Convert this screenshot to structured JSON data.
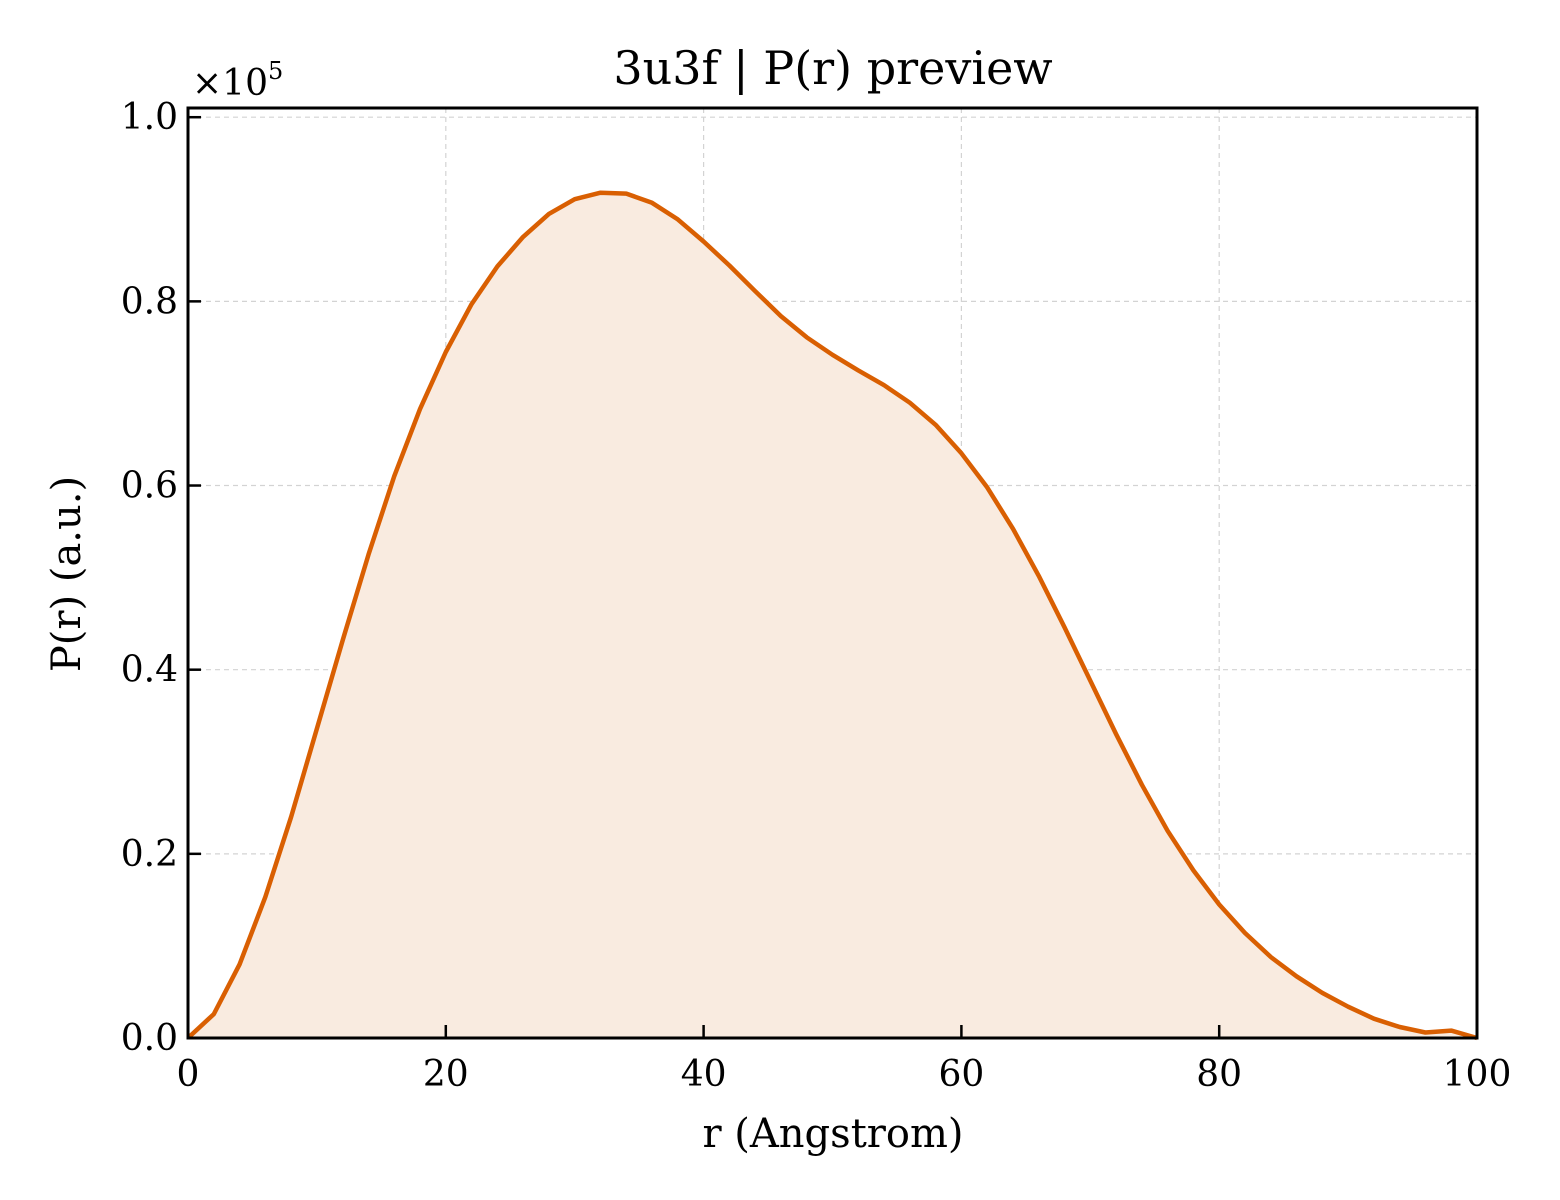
{
  "chart_data": {
    "type": "area",
    "title": "3u3f | P(r) preview",
    "xlabel": "r (Angstrom)",
    "ylabel": "P(r) (a.u.)",
    "y_multiplier_base": "×10",
    "y_multiplier_exp": "5",
    "xlim": [
      0,
      100
    ],
    "ylim": [
      0,
      1.01
    ],
    "x_ticks": [
      0,
      20,
      40,
      60,
      80,
      100
    ],
    "x_tick_labels": [
      "0",
      "20",
      "40",
      "60",
      "80",
      "100"
    ],
    "y_ticks": [
      0.0,
      0.2,
      0.4,
      0.6,
      0.8,
      1.0
    ],
    "y_tick_labels": [
      "0.0",
      "0.2",
      "0.4",
      "0.6",
      "0.8",
      "1.0"
    ],
    "grid": true,
    "line_color": "#d95f02",
    "fill_color": "#f9ebe0",
    "series": [
      {
        "x": [
          0,
          2,
          4,
          6,
          8,
          10,
          12,
          14,
          16,
          18,
          20,
          22,
          24,
          26,
          28,
          30,
          32,
          34,
          36,
          38,
          40,
          42,
          44,
          46,
          48,
          50,
          52,
          54,
          56,
          58,
          60,
          62,
          64,
          66,
          68,
          70,
          72,
          74,
          76,
          78,
          80,
          82,
          84,
          86,
          88,
          90,
          92,
          94,
          96,
          98,
          100
        ],
        "y": [
          0.0,
          0.026,
          0.08,
          0.153,
          0.24,
          0.336,
          0.432,
          0.525,
          0.61,
          0.683,
          0.745,
          0.797,
          0.838,
          0.87,
          0.895,
          0.911,
          0.918,
          0.917,
          0.907,
          0.889,
          0.865,
          0.839,
          0.811,
          0.784,
          0.761,
          0.742,
          0.725,
          0.709,
          0.69,
          0.666,
          0.635,
          0.598,
          0.553,
          0.502,
          0.446,
          0.388,
          0.33,
          0.275,
          0.225,
          0.182,
          0.145,
          0.114,
          0.088,
          0.067,
          0.049,
          0.034,
          0.021,
          0.012,
          0.006,
          0.008,
          0.0
        ]
      }
    ]
  }
}
